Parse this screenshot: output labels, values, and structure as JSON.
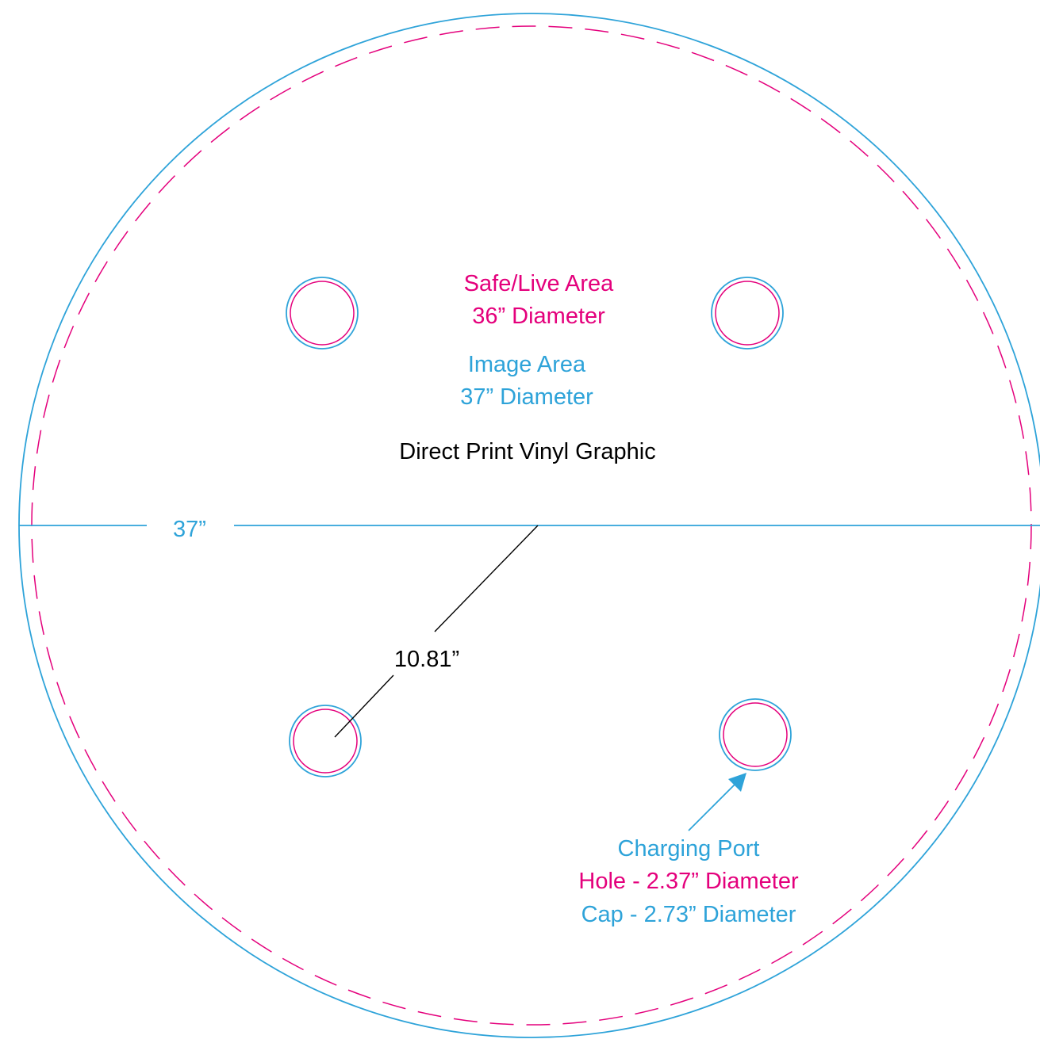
{
  "labels": {
    "safe_area_title": "Safe/Live Area",
    "safe_area_size": "36” Diameter",
    "image_area_title": "Image Area",
    "image_area_size": "37” Diameter",
    "product": "Direct Print Vinyl Graphic",
    "diameter": "37”",
    "port_spacing": "10.81”",
    "port_title": "Charging Port",
    "port_hole": "Hole - 2.37” Diameter",
    "port_cap": "Cap - 2.73” Diameter"
  },
  "colors": {
    "image_area": "#2ea3d9",
    "safe_area": "#e4007c",
    "text_dark": "#000000"
  }
}
